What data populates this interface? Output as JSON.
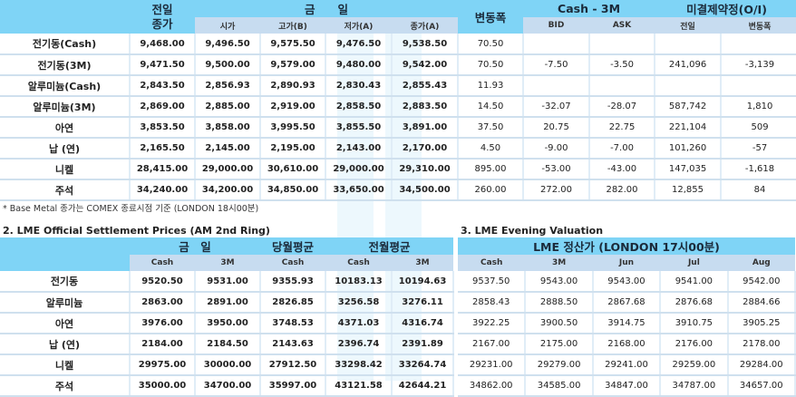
{
  "table1": {
    "headers": {
      "prev_close": "전일\n종가",
      "today": "금　　일",
      "open": "시가",
      "high": "고가(B)",
      "low": "저가(A)",
      "close": "종가(A)",
      "change": "변동폭",
      "spread": "Cash - 3M",
      "bid": "BID",
      "ask": "ASK",
      "oi": "미결제약정(O/I)",
      "oi_prev": "전일",
      "oi_change": "변동폭"
    },
    "rows": [
      [
        "전기동(Cash)",
        "9,468.00",
        "9,496.50",
        "9,575.50",
        "9,476.50",
        "9,538.50",
        "70.50",
        "",
        "",
        "",
        ""
      ],
      [
        "전기동(3M)",
        "9,471.50",
        "9,500.00",
        "9,579.00",
        "9,480.00",
        "9,542.00",
        "70.50",
        "-7.50",
        "-3.50",
        "241,096",
        "-3,139"
      ],
      [
        "알루미늄(Cash)",
        "2,843.50",
        "2,856.93",
        "2,890.93",
        "2,830.43",
        "2,855.43",
        "11.93",
        "",
        "",
        "",
        ""
      ],
      [
        "알루미늄(3M)",
        "2,869.00",
        "2,885.00",
        "2,919.00",
        "2,858.50",
        "2,883.50",
        "14.50",
        "-32.07",
        "-28.07",
        "587,742",
        "1,810"
      ],
      [
        "아연",
        "3,853.50",
        "3,858.00",
        "3,995.50",
        "3,855.50",
        "3,891.00",
        "37.50",
        "20.75",
        "22.75",
        "221,104",
        "509"
      ],
      [
        "납 (연)",
        "2,165.50",
        "2,145.00",
        "2,195.00",
        "2,143.00",
        "2,170.00",
        "4.50",
        "-9.00",
        "-7.00",
        "101,260",
        "-57"
      ],
      [
        "니켈",
        "28,415.00",
        "29,000.00",
        "30,610.00",
        "29,000.00",
        "29,310.00",
        "895.00",
        "-53.00",
        "-43.00",
        "147,035",
        "-1,618"
      ],
      [
        "주석",
        "34,240.00",
        "34,200.00",
        "34,850.00",
        "33,650.00",
        "34,500.00",
        "260.00",
        "272.00",
        "282.00",
        "12,855",
        "84"
      ]
    ],
    "note": "* Base Metal 종가는 COMEX 종료시점 기준 (LONDON 18시00분)"
  },
  "table2": {
    "title": "2. LME Official Settlement Prices (AM 2nd Ring)",
    "headers": {
      "today": "금　일",
      "month_avg": "당월평균",
      "prev_month_avg": "전월평균",
      "cash": "Cash",
      "m3": "3M"
    },
    "rows": [
      [
        "전기동",
        "9520.50",
        "9531.00",
        "9355.93",
        "10183.13",
        "10194.63"
      ],
      [
        "알루미늄",
        "2863.00",
        "2891.00",
        "2826.85",
        "3256.58",
        "3276.11"
      ],
      [
        "아연",
        "3976.00",
        "3950.00",
        "3748.53",
        "4371.03",
        "4316.74"
      ],
      [
        "납 (연)",
        "2184.00",
        "2184.50",
        "2143.63",
        "2396.74",
        "2391.89"
      ],
      [
        "니켈",
        "29975.00",
        "30000.00",
        "27912.50",
        "33298.42",
        "33264.74"
      ],
      [
        "주석",
        "35000.00",
        "34700.00",
        "35997.00",
        "43121.58",
        "42644.21"
      ]
    ]
  },
  "table3": {
    "title": "3. LME Evening Valuation",
    "header": "LME 정산가 (LONDON 17시00분)",
    "columns": [
      "Cash",
      "3M",
      "Jun",
      "Jul",
      "Aug"
    ],
    "rows": [
      [
        "9537.50",
        "9543.00",
        "9543.00",
        "9541.00",
        "9542.00"
      ],
      [
        "2858.43",
        "2888.50",
        "2867.68",
        "2876.68",
        "2884.66"
      ],
      [
        "3922.25",
        "3900.50",
        "3914.75",
        "3910.75",
        "3905.25"
      ],
      [
        "2167.00",
        "2175.00",
        "2168.00",
        "2176.00",
        "2178.00"
      ],
      [
        "29231.00",
        "29279.00",
        "29241.00",
        "29259.00",
        "29284.00"
      ],
      [
        "34862.00",
        "34585.00",
        "34847.00",
        "34787.00",
        "34657.00"
      ]
    ]
  },
  "colors": {
    "header": "#7fd4f6",
    "subheader": "#c7dcf0"
  }
}
